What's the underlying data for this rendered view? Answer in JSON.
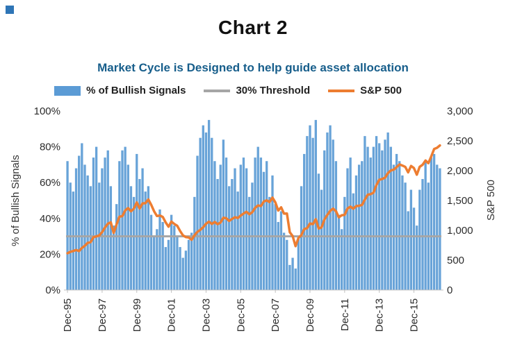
{
  "header": {
    "title": "Chart 2",
    "subtitle": "Market Cycle is Designed to help guide asset allocation",
    "subtitle_color": "#175E8B"
  },
  "legend": {
    "items": [
      {
        "label": "% of Bullish Signals"
      },
      {
        "label": "30% Threshold"
      },
      {
        "label": "S&P 500"
      }
    ]
  },
  "chart_data": {
    "type": "bar+line combo",
    "x_unit": "month",
    "x_start": "Dec-95",
    "x_end": "Jun-17",
    "x_step_months": 2,
    "grid": false,
    "legend_position": "top",
    "x_ticks": [
      "Dec-95",
      "Dec-97",
      "Dec-99",
      "Dec-01",
      "Dec-03",
      "Dec-05",
      "Dec-07",
      "Dec-09",
      "Dec-11",
      "Dec-13",
      "Dec-15"
    ],
    "x_tick_indices": [
      0,
      12,
      24,
      36,
      48,
      60,
      72,
      84,
      96,
      108,
      120
    ],
    "left_axis": {
      "title": "% of Bullish Signals",
      "min": 0,
      "max": 100,
      "tick_labels": [
        "100%",
        "80%",
        "60%",
        "40%",
        "20%",
        "0%"
      ]
    },
    "right_axis": {
      "title": "S&P 500",
      "min": 0,
      "max": 3000,
      "tick_labels": [
        "3,000",
        "2,500",
        "2,000",
        "1,500",
        "1,000",
        "500",
        "0"
      ]
    },
    "series": [
      {
        "name": "% of Bullish Signals",
        "type": "bar",
        "axis": "left",
        "color": "#5B9BD5",
        "values": [
          72,
          60,
          55,
          68,
          75,
          82,
          70,
          64,
          58,
          74,
          80,
          60,
          68,
          74,
          78,
          58,
          36,
          48,
          72,
          78,
          80,
          70,
          58,
          52,
          76,
          62,
          68,
          55,
          58,
          42,
          30,
          34,
          45,
          38,
          24,
          28,
          42,
          36,
          30,
          24,
          18,
          22,
          28,
          32,
          52,
          75,
          85,
          92,
          88,
          95,
          85,
          72,
          62,
          70,
          84,
          74,
          58,
          62,
          68,
          55,
          70,
          74,
          68,
          52,
          60,
          74,
          80,
          74,
          66,
          72,
          52,
          64,
          48,
          38,
          44,
          32,
          28,
          14,
          18,
          12,
          30,
          58,
          76,
          86,
          92,
          85,
          95,
          65,
          56,
          78,
          88,
          92,
          84,
          72,
          42,
          34,
          52,
          68,
          74,
          54,
          64,
          70,
          72,
          86,
          80,
          74,
          80,
          86,
          82,
          78,
          84,
          88,
          80,
          70,
          76,
          72,
          64,
          60,
          44,
          56,
          46,
          36,
          56,
          62,
          72,
          60,
          74,
          76,
          70,
          68
        ]
      },
      {
        "name": "30% Threshold",
        "type": "threshold-line",
        "axis": "left",
        "color": "#A6A6A6",
        "value": 30
      },
      {
        "name": "S&P 500",
        "type": "line",
        "axis": "right",
        "color": "#ED7D31",
        "values": [
          616,
          640,
          654,
          671,
          652,
          705,
          741,
          791,
          801,
          885,
          899,
          915,
          970,
          1049,
          1112,
          1134,
          957,
          1099,
          1229,
          1238,
          1335,
          1373,
          1320,
          1363,
          1469,
          1366,
          1452,
          1455,
          1518,
          1429,
          1320,
          1240,
          1249,
          1224,
          1134,
          1060,
          1148,
          1107,
          1077,
          990,
          916,
          886,
          880,
          841,
          917,
          975,
          1008,
          1051,
          1112,
          1145,
          1107,
          1141,
          1104,
          1130,
          1212,
          1204,
          1157,
          1191,
          1220,
          1207,
          1248,
          1281,
          1311,
          1270,
          1304,
          1378,
          1418,
          1407,
          1482,
          1503,
          1474,
          1549,
          1468,
          1331,
          1386,
          1280,
          1283,
          969,
          903,
          735,
          873,
          919,
          1021,
          1036,
          1115,
          1104,
          1187,
          1031,
          1049,
          1183,
          1258,
          1327,
          1364,
          1321,
          1219,
          1253,
          1258,
          1366,
          1398,
          1362,
          1407,
          1412,
          1426,
          1515,
          1598,
          1606,
          1633,
          1757,
          1848,
          1859,
          1884,
          1960,
          2003,
          2018,
          2059,
          2105,
          2086,
          2063,
          1972,
          2079,
          2044,
          1932,
          2065,
          2099,
          2171,
          2126,
          2239,
          2364,
          2384,
          2423
        ]
      }
    ]
  }
}
